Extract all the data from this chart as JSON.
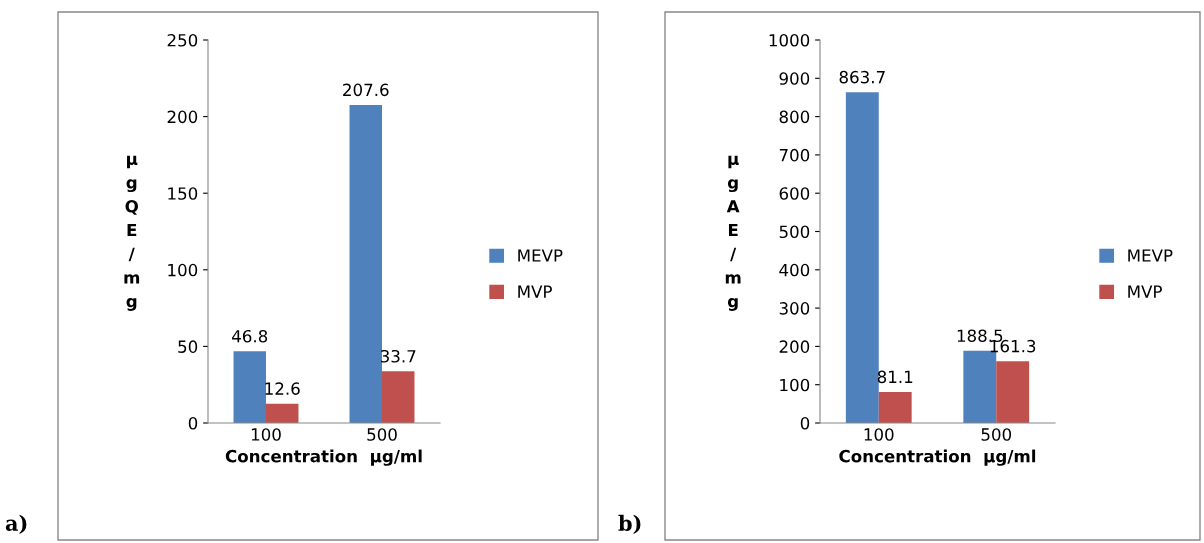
{
  "chart_data": [
    {
      "type": "bar",
      "categories": [
        "100",
        "500"
      ],
      "xlabel": "Concentration  μg/ml",
      "ylabel": "μgQE/mg",
      "ylim": [
        0,
        250
      ],
      "yticks": [
        0,
        50,
        100,
        150,
        200,
        250
      ],
      "legend": "right",
      "grid": false,
      "data_labels": true,
      "annotations": [
        "a)"
      ],
      "series": [
        {
          "name": "MEVP",
          "color": "#4f81bd",
          "values": [
            46.8,
            207.6
          ]
        },
        {
          "name": "MVP",
          "color": "#c0504d",
          "values": [
            12.6,
            33.7
          ]
        }
      ]
    },
    {
      "type": "bar",
      "categories": [
        "100",
        "500"
      ],
      "xlabel": "Concentration  μg/ml",
      "ylabel": "μgAE/mg",
      "ylim": [
        0,
        1000
      ],
      "yticks": [
        0,
        100,
        200,
        300,
        400,
        500,
        600,
        700,
        800,
        900,
        1000
      ],
      "legend": "right",
      "grid": false,
      "data_labels": true,
      "annotations": [
        "b)"
      ],
      "series": [
        {
          "name": "MEVP",
          "color": "#4f81bd",
          "values": [
            863.7,
            188.5
          ]
        },
        {
          "name": "MVP",
          "color": "#c0504d",
          "values": [
            81.1,
            161.3
          ]
        }
      ]
    }
  ]
}
